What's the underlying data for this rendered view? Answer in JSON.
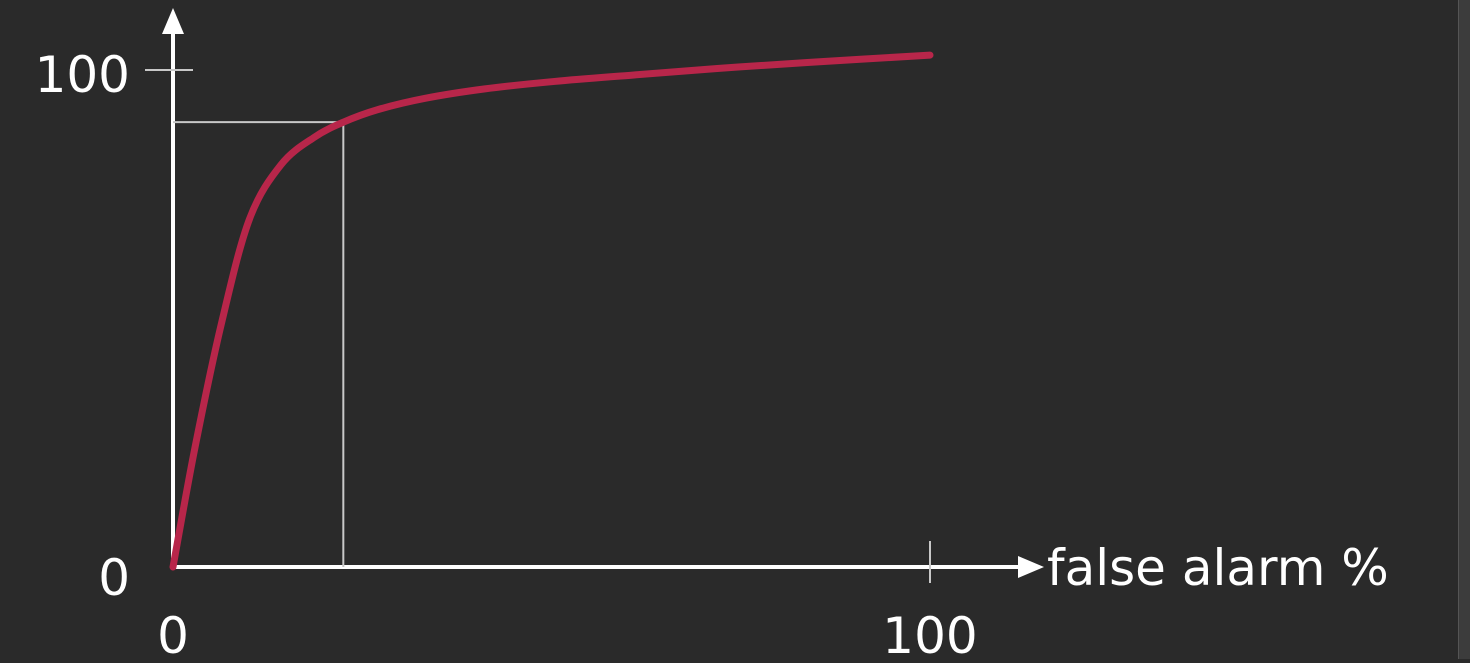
{
  "chart_data": {
    "type": "line",
    "xlabel": "false alarm %",
    "ylabel": "",
    "xlim": [
      0,
      100
    ],
    "ylim": [
      0,
      100
    ],
    "x_ticks": [
      {
        "value": 0,
        "label": "0"
      },
      {
        "value": 100,
        "label": "100"
      }
    ],
    "y_ticks": [
      {
        "value": 0,
        "label": "0"
      },
      {
        "value": 100,
        "label": "100"
      }
    ],
    "series": [
      {
        "x": [
          0,
          2.9,
          6.4,
          10.1,
          14.3,
          18.7,
          22.5,
          27.0,
          33.3,
          41.2,
          50.4,
          60.9,
          71.9,
          83.8,
          100.0
        ],
        "y": [
          0,
          24,
          49,
          70,
          81,
          86.5,
          89.5,
          92.0,
          94.3,
          96.2,
          97.7,
          99.0,
          100.3,
          101.5,
          103.0
        ]
      }
    ],
    "guide": {
      "x": 22.5,
      "y": 89.5
    },
    "grid": false,
    "legend": "none"
  },
  "colors": {
    "background": "#2a2a2a",
    "axis": "#ffffff",
    "curve": "#b8264a",
    "guide": "#c8c8c8",
    "tick": "#c8c8c8",
    "text": "#ffffff"
  }
}
